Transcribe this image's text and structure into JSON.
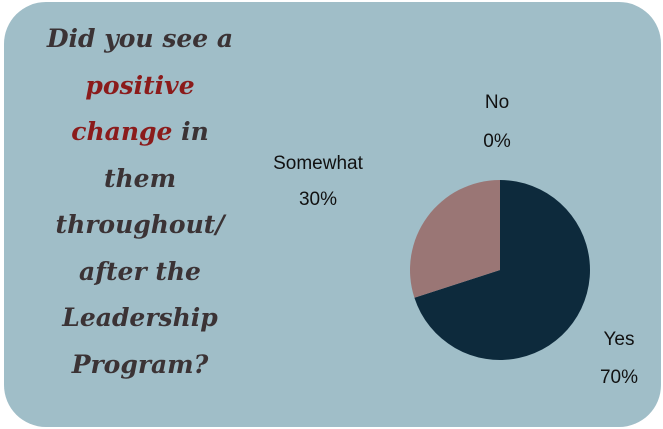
{
  "chart_data": {
    "type": "pie",
    "title_lines": [
      [
        {
          "text": "Did you see a",
          "color": "#3b3335"
        }
      ],
      [
        {
          "text": "positive",
          "color": "#8b1b1b"
        }
      ],
      [
        {
          "text": "change",
          "color": "#8b1b1b"
        },
        {
          "text": " in",
          "color": "#3b3335"
        }
      ],
      [
        {
          "text": "them",
          "color": "#3b3335"
        }
      ],
      [
        {
          "text": "throughout/",
          "color": "#3b3335"
        }
      ],
      [
        {
          "text": "after the",
          "color": "#3b3335"
        }
      ],
      [
        {
          "text": "Leadership",
          "color": "#3b3335"
        }
      ],
      [
        {
          "text": "Program?",
          "color": "#3b3335"
        }
      ]
    ],
    "categories": [
      "Yes",
      "Somewhat",
      "No"
    ],
    "values": [
      70,
      30,
      0
    ],
    "value_labels": [
      "70%",
      "30%",
      "0%"
    ],
    "colors": [
      "#0d2a3c",
      "#9a7675",
      "#6e8a96"
    ]
  }
}
